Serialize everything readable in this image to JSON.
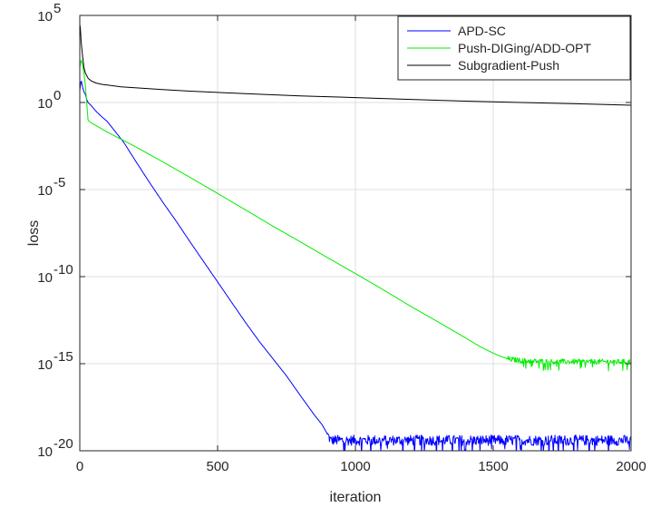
{
  "chart_data": {
    "type": "line",
    "title": "",
    "xlabel": "iteration",
    "ylabel": "loss",
    "xscale": "linear",
    "yscale": "log",
    "xlim": [
      0,
      2000
    ],
    "ylim": [
      1e-20,
      100000
    ],
    "grid": true,
    "legend_position": "top-right",
    "xticks": [
      {
        "value": 0,
        "label": "0"
      },
      {
        "value": 500,
        "label": "500"
      },
      {
        "value": 1000,
        "label": "1000"
      },
      {
        "value": 1500,
        "label": "1500"
      },
      {
        "value": 2000,
        "label": "2000"
      }
    ],
    "yticks": [
      {
        "value": 1e-20,
        "base": "10",
        "exp": "-20"
      },
      {
        "value": 1e-15,
        "base": "10",
        "exp": "-15"
      },
      {
        "value": 1e-10,
        "base": "10",
        "exp": "-10"
      },
      {
        "value": 1e-05,
        "base": "10",
        "exp": "-5"
      },
      {
        "value": 1,
        "base": "10",
        "exp": "0"
      },
      {
        "value": 100000,
        "base": "10",
        "exp": "5"
      }
    ],
    "series": [
      {
        "name": "APD-SC",
        "color": "#0000ff",
        "noise_from_x": 900,
        "noise_level": 0.3,
        "x": [
          0,
          5,
          10,
          15,
          20,
          25,
          30,
          40,
          60,
          80,
          100,
          130,
          160,
          200,
          250,
          300,
          350,
          400,
          450,
          500,
          550,
          600,
          650,
          700,
          750,
          800,
          850,
          880,
          900,
          910,
          920,
          950,
          1000,
          1100,
          1200,
          1300,
          1400,
          1500,
          1550,
          1600,
          1700,
          1800,
          1900,
          2000
        ],
        "y": [
          5,
          20,
          8,
          4,
          3,
          1.5,
          1,
          0.7,
          0.3,
          0.15,
          0.08,
          0.02,
          0.005,
          0.0005,
          3e-05,
          2e-06,
          1.5e-07,
          1e-08,
          7e-10,
          5e-11,
          3.5e-12,
          2.5e-13,
          2e-14,
          2e-15,
          2e-16,
          1.5e-17,
          1.2e-18,
          3e-19,
          8e-20,
          4e-20,
          4e-20,
          4e-20,
          4e-20,
          4e-20,
          4e-20,
          4e-20,
          4e-20,
          4e-20,
          4e-20,
          4e-20,
          4e-20,
          4e-20,
          4e-20,
          4e-20
        ]
      },
      {
        "name": "Push-DIGing/ADD-OPT",
        "color": "#00ee00",
        "noise_from_x": 1550,
        "noise_level": 0.15,
        "x": [
          0,
          5,
          10,
          15,
          20,
          25,
          30,
          35,
          40,
          100,
          200,
          300,
          400,
          500,
          600,
          700,
          800,
          900,
          1000,
          1100,
          1200,
          1300,
          1400,
          1450,
          1500,
          1530,
          1560,
          1600,
          1700,
          1800,
          1900,
          2000
        ],
        "y": [
          100,
          300,
          150,
          50,
          10,
          1,
          0.1,
          0.08,
          0.07,
          0.02,
          0.003,
          0.0004,
          5e-05,
          6e-06,
          7e-07,
          8e-08,
          1e-08,
          1.2e-09,
          1.5e-10,
          1.8e-11,
          2e-12,
          2.5e-13,
          3e-14,
          1e-14,
          4e-15,
          2.5e-15,
          1.8e-15,
          1.5e-15,
          1.3e-15,
          1.3e-15,
          1.3e-15,
          1.3e-15
        ]
      },
      {
        "name": "Subgradient-Push",
        "color": "#000000",
        "x": [
          0,
          2,
          5,
          10,
          15,
          20,
          30,
          40,
          50,
          60,
          80,
          100,
          150,
          200,
          300,
          400,
          500,
          600,
          800,
          1000,
          1200,
          1400,
          1600,
          1800,
          2000
        ],
        "y": [
          30000,
          20000,
          3000,
          500,
          100,
          50,
          25,
          18,
          15,
          13,
          11,
          10,
          8,
          7,
          5.5,
          4.5,
          3.8,
          3.2,
          2.4,
          1.9,
          1.5,
          1.2,
          1,
          0.85,
          0.7
        ]
      }
    ]
  }
}
